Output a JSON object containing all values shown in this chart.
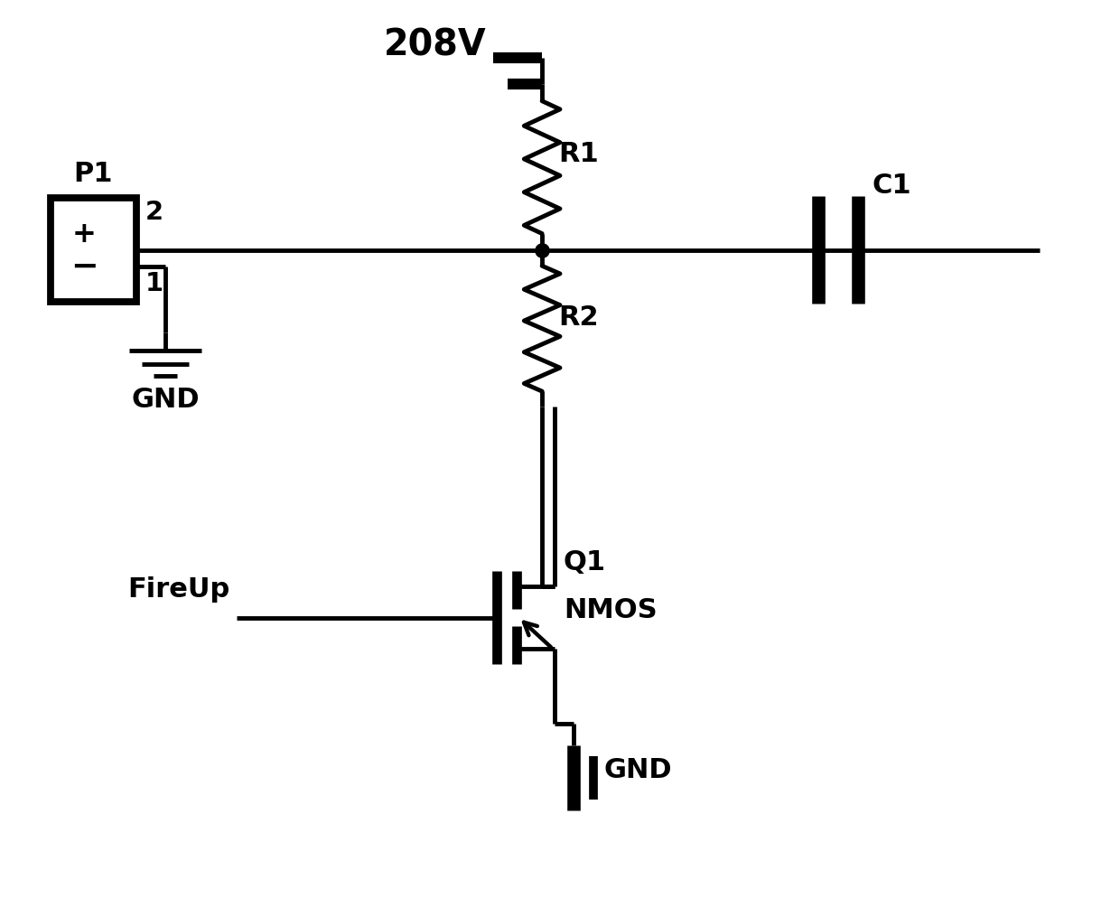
{
  "bg_color": "#ffffff",
  "line_color": "#000000",
  "line_width": 3.5,
  "fig_width": 12.4,
  "fig_height": 10.15,
  "font_size": 22,
  "labels": {
    "voltage": "208V",
    "R1": "R1",
    "R2": "R2",
    "C1": "C1",
    "P1": "P1",
    "pin2": "2",
    "pin1": "1",
    "GND1": "GND",
    "GND2": "GND",
    "Q1": "Q1",
    "NMOS": "NMOS",
    "FireUp": "FireUp"
  }
}
